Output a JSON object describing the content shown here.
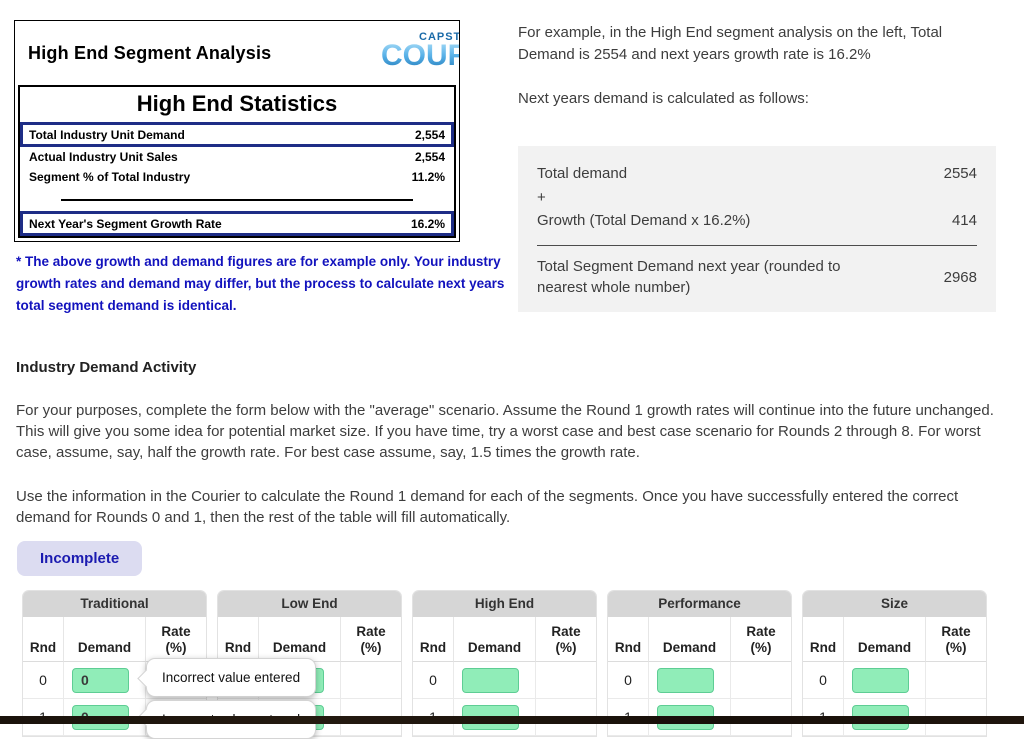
{
  "segment_analysis": {
    "title": "High End Segment Analysis",
    "logo": {
      "caps_text": "CAPSTONE",
      "main_text": "COURIER"
    },
    "stats_title": "High End Statistics",
    "rows": [
      {
        "label": "Total Industry Unit Demand",
        "value": "2,554"
      },
      {
        "label": "Actual Industry Unit Sales",
        "value": "2,554"
      },
      {
        "label": "Segment % of Total Industry",
        "value": "11.2%"
      },
      {
        "label": "Next Year's Segment Growth Rate",
        "value": "16.2%"
      }
    ],
    "footnote": "* The above growth and demand figures are for example only. Your industry growth rates and demand may differ, but the process to calculate next years total segment demand is identical."
  },
  "example": {
    "para1": "For example, in the High End segment analysis on the left, Total Demand is 2554 and next years growth rate is 16.2%",
    "para2": "Next years demand is calculated as follows:",
    "calc": {
      "row1_label": "Total demand",
      "row1_value": "2554",
      "plus": "+",
      "row2_label": "Growth (Total Demand x 16.2%)",
      "row2_value": "414",
      "total_label": "Total Segment Demand next year (rounded to nearest whole number)",
      "total_value": "2968"
    }
  },
  "activity": {
    "heading": "Industry Demand Activity",
    "para1": "For your purposes, complete the form below with the \"average\" scenario. Assume the Round 1 growth rates will continue into the future unchanged. This will give you some idea for potential market size. If you have time, try a worst case and best case scenario for Rounds 2 through 8. For worst case, assume, say, half the growth rate. For best case assume, say, 1.5 times the growth rate.",
    "para2": "Use the information in the Courier to calculate the Round 1 demand for each of the segments. Once you have successfully entered the correct demand for Rounds 0 and 1, then the rest of the table will fill automatically.",
    "status_badge": "Incomplete"
  },
  "demand_table": {
    "columns": {
      "rnd": "Rnd",
      "demand": "Demand",
      "rate_l1": "Rate",
      "rate_l2": "(%)"
    },
    "tooltip": "Incorrect value entered",
    "panels": [
      {
        "title": "Traditional",
        "rows": [
          {
            "rnd": "0",
            "demand": "0"
          },
          {
            "rnd": "1",
            "demand": "0"
          }
        ]
      },
      {
        "title": "Low End",
        "rows": [
          {
            "rnd": "0",
            "demand": ""
          },
          {
            "rnd": "1",
            "demand": ""
          }
        ]
      },
      {
        "title": "High End",
        "rows": [
          {
            "rnd": "0",
            "demand": ""
          },
          {
            "rnd": "1",
            "demand": ""
          }
        ]
      },
      {
        "title": "Performance",
        "rows": [
          {
            "rnd": "0",
            "demand": ""
          },
          {
            "rnd": "1",
            "demand": ""
          }
        ]
      },
      {
        "title": "Size",
        "rows": [
          {
            "rnd": "0",
            "demand": ""
          },
          {
            "rnd": "1",
            "demand": ""
          }
        ]
      }
    ]
  },
  "colors": {
    "highlight_navy": "#1e2d86",
    "footnote_blue": "#1212bd",
    "badge_bg": "#dcdcf1",
    "badge_text": "#1b1bb0",
    "input_green": "#90edb8",
    "input_border": "#5ecd94",
    "panel_header_gray": "#d6d6d6",
    "calc_box_bg": "#f2f2f2"
  }
}
